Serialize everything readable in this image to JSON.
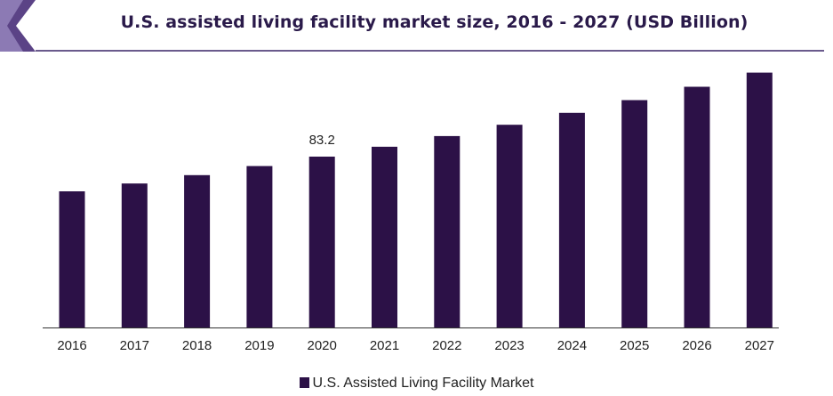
{
  "header": {
    "title": "U.S. assisted living facility market size, 2016 - 2027 (USD Billion)"
  },
  "colors": {
    "bar": "#2c1147",
    "accent": "#5b4386",
    "title": "#2a1a4a"
  },
  "chart_data": {
    "type": "bar",
    "title": "U.S. assisted living facility market size, 2016 - 2027 (USD Billion)",
    "categories": [
      "2016",
      "2017",
      "2018",
      "2019",
      "2020",
      "2021",
      "2022",
      "2023",
      "2024",
      "2025",
      "2026",
      "2027"
    ],
    "series": [
      {
        "name": "U.S. Assisted Living Facility Market",
        "values": [
          66.3,
          70.1,
          74.2,
          78.6,
          83.2,
          88.0,
          93.2,
          98.7,
          104.5,
          110.7,
          117.2,
          124.1
        ]
      }
    ],
    "data_labels": [
      {
        "category": "2020",
        "text": "83.2"
      }
    ],
    "xlabel": "",
    "ylabel": "",
    "ylim": [
      0,
      130
    ],
    "grid": false,
    "legend": "bottom-center"
  }
}
